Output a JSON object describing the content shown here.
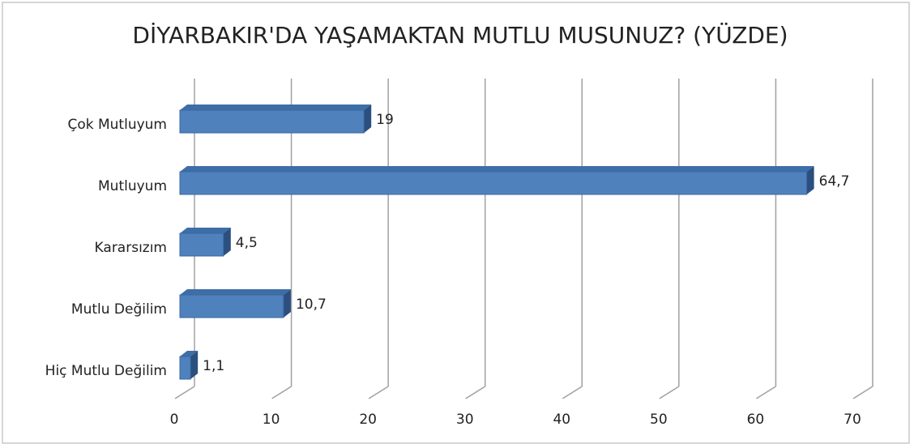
{
  "chart_data": {
    "type": "bar",
    "orientation": "horizontal",
    "title": "DİYARBAKIR'DA YAŞAMAKTAN MUTLU MUSUNUZ? (YÜZDE)",
    "categories": [
      "Çok Mutluyum",
      "Mutluyum",
      "Kararsızım",
      "Mutlu Değilim",
      "Hiç Mutlu Değilim"
    ],
    "values": [
      19,
      64.7,
      4.5,
      10.7,
      1.1
    ],
    "value_labels": [
      "19",
      "64,7",
      "4,5",
      "10,7",
      "1,1"
    ],
    "color": "#4f81bd",
    "xlim": [
      0,
      70
    ],
    "xticks": [
      0,
      10,
      20,
      30,
      40,
      50,
      60,
      70
    ],
    "grid": true
  }
}
